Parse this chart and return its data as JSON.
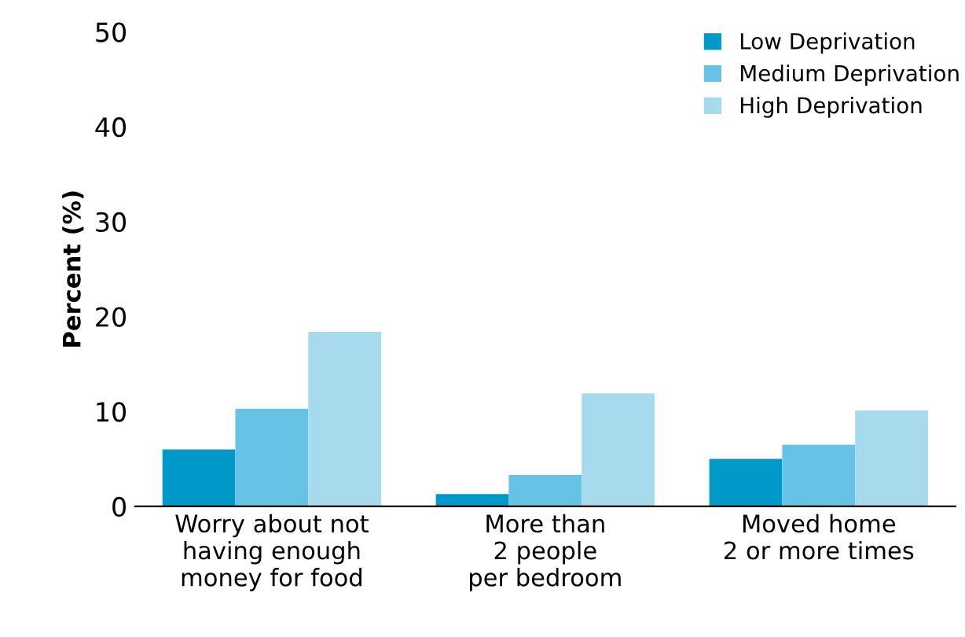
{
  "chart_data": {
    "type": "bar",
    "ylabel": "Percent (%)",
    "categories": [
      "Worry about not\nhaving enough\nmoney for food",
      "More than\n2 people\nper bedroom",
      "Moved home\n2 or more times"
    ],
    "series": [
      {
        "name": "Low Deprivation",
        "color": "#0099c8",
        "values": [
          6.0,
          1.3,
          5.0
        ]
      },
      {
        "name": "Medium Deprivation",
        "color": "#66c3e5",
        "values": [
          10.3,
          3.3,
          6.5
        ]
      },
      {
        "name": "High Deprivation",
        "color": "#a8daee",
        "values": [
          18.4,
          11.9,
          10.1
        ]
      }
    ],
    "ylim": [
      0,
      50
    ],
    "yticks": [
      0,
      10,
      20,
      30,
      40,
      50
    ],
    "grid": false,
    "legend": "top right"
  }
}
